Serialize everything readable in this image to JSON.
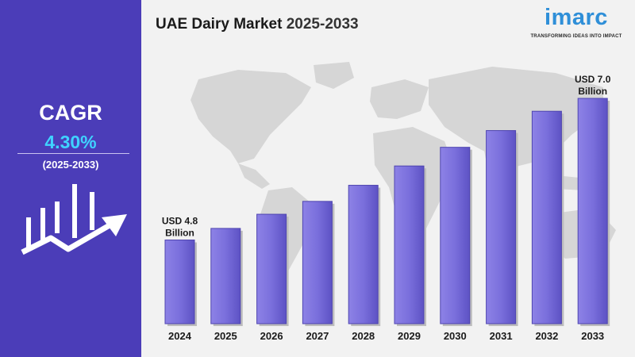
{
  "header": {
    "title_prefix": "UAE Dairy Market",
    "title_years": "2025-2033"
  },
  "logo": {
    "word": "imarc",
    "tagline": "TRANSFORMING IDEAS INTO IMPACT",
    "color": "#2f8fd8"
  },
  "sidebar": {
    "cagr_label": "CAGR",
    "cagr_value": "4.30%",
    "period": "(2025-2033)",
    "background": "#4b3db8",
    "value_color": "#3fd3ff",
    "icon": "growth-bar-chart-arrow-icon"
  },
  "chart_data": {
    "type": "bar",
    "categories": [
      "2024",
      "2025",
      "2026",
      "2027",
      "2028",
      "2029",
      "2030",
      "2031",
      "2032",
      "2033"
    ],
    "values": [
      4.8,
      4.98,
      5.2,
      5.4,
      5.65,
      5.95,
      6.24,
      6.5,
      6.8,
      7.0
    ],
    "ylim": [
      3.5,
      7.0
    ],
    "bar_color": "#7a6fdc",
    "annotations": [
      {
        "category": "2024",
        "line1": "USD 4.8",
        "line2": "Billion"
      },
      {
        "category": "2033",
        "line1": "USD 7.0",
        "line2": "Billion"
      }
    ],
    "grid": false
  }
}
